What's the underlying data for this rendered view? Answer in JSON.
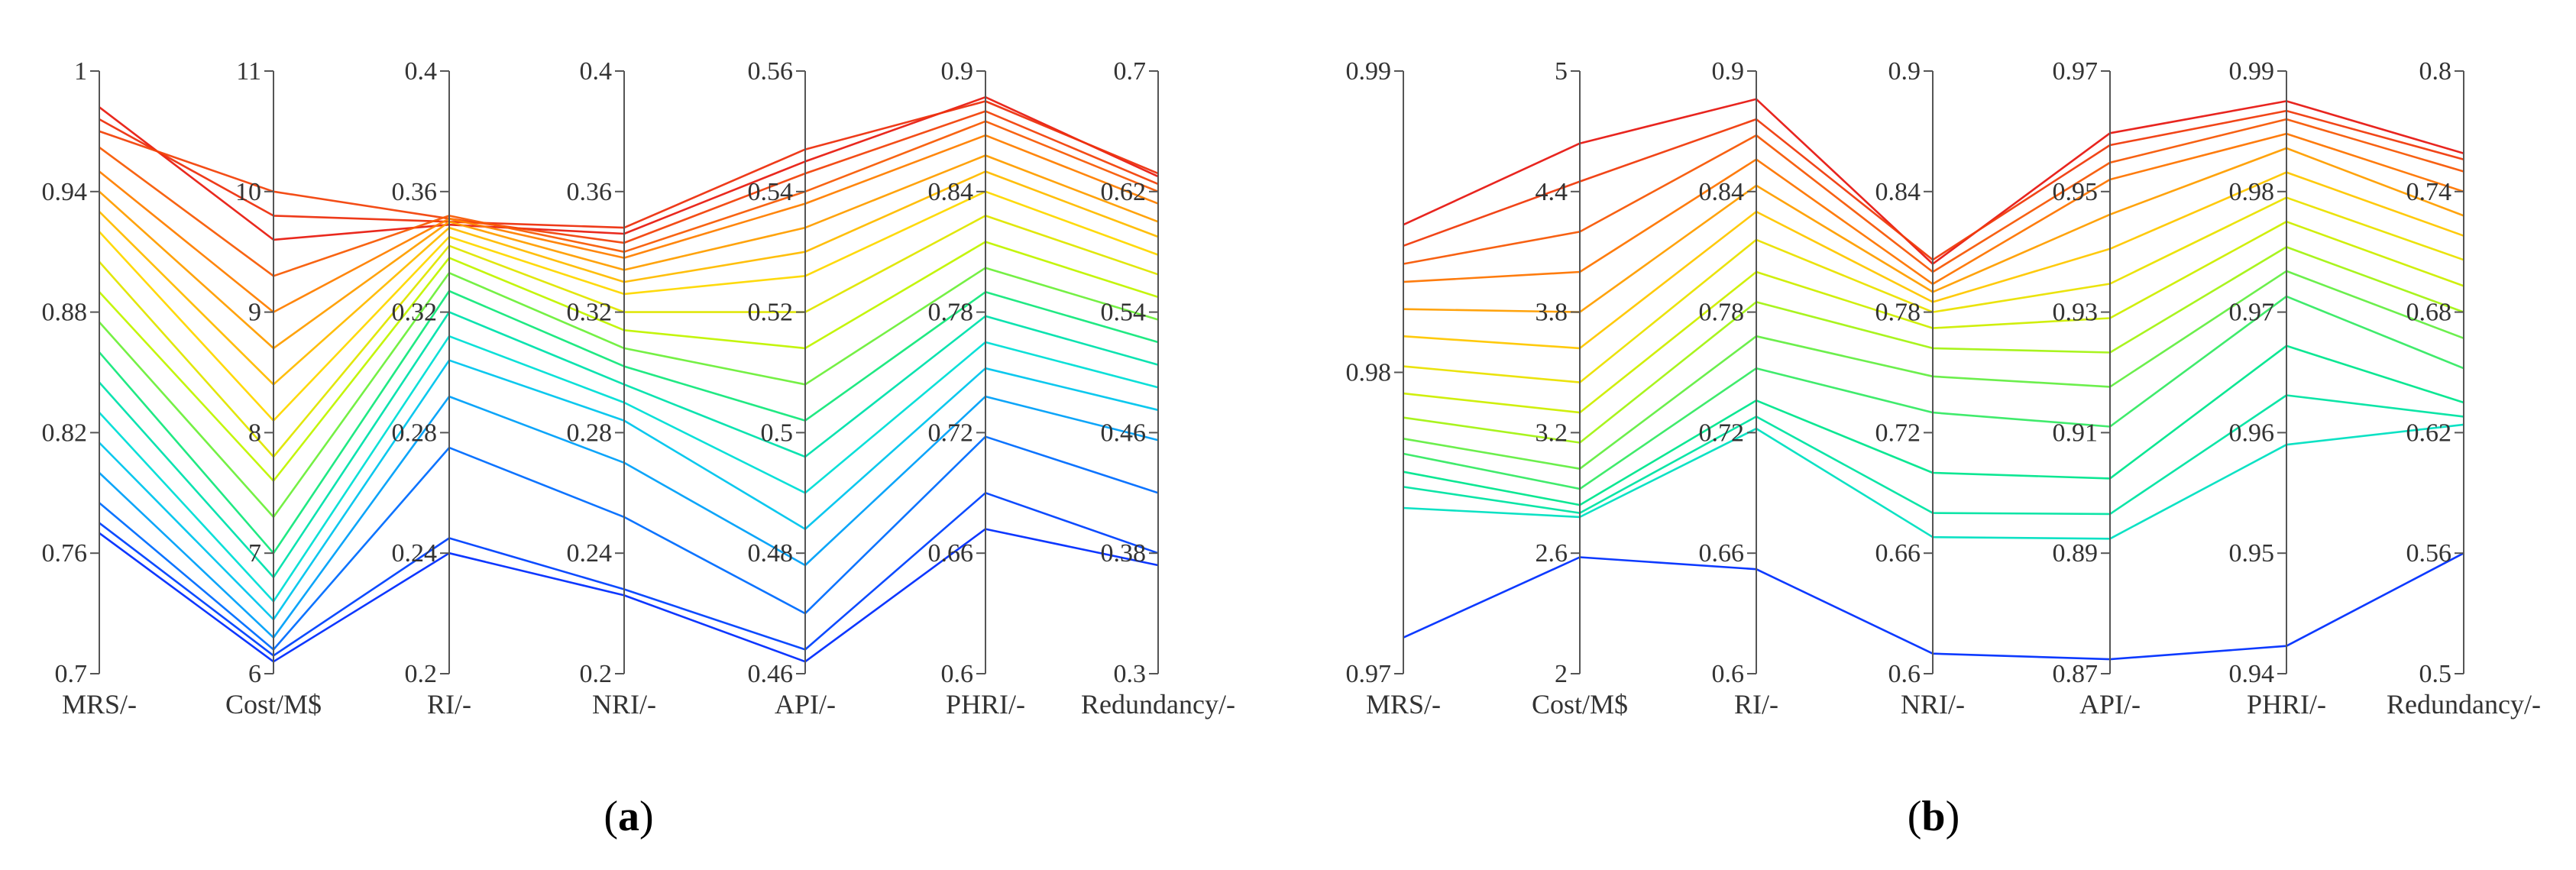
{
  "chart_data": [
    {
      "type": "parallel-coordinates",
      "panel": "(a)",
      "caption_letter": "a",
      "color_scale": "rainbow (blue = low MRS, red = high MRS)",
      "axes": [
        {
          "name": "MRS/-",
          "range": [
            0.7,
            1.0
          ],
          "ticks": [
            "0.7",
            "0.76",
            "0.82",
            "0.88",
            "0.94",
            "1"
          ]
        },
        {
          "name": "Cost/M$",
          "range": [
            6,
            11
          ],
          "ticks": [
            "6",
            "7",
            "8",
            "9",
            "10",
            "11"
          ]
        },
        {
          "name": "RI/-",
          "range": [
            0.2,
            0.4
          ],
          "ticks": [
            "0.2",
            "0.24",
            "0.28",
            "0.32",
            "0.36",
            "0.4"
          ]
        },
        {
          "name": "NRI/-",
          "range": [
            0.2,
            0.4
          ],
          "ticks": [
            "0.2",
            "0.24",
            "0.28",
            "0.32",
            "0.36",
            "0.4"
          ]
        },
        {
          "name": "API/-",
          "range": [
            0.46,
            0.56
          ],
          "ticks": [
            "0.46",
            "0.48",
            "0.5",
            "0.52",
            "0.54",
            "0.56"
          ]
        },
        {
          "name": "PHRI/-",
          "range": [
            0.6,
            0.9
          ],
          "ticks": [
            "0.6",
            "0.66",
            "0.72",
            "0.78",
            "0.84",
            "0.9"
          ]
        },
        {
          "name": "Redundancy/-",
          "range": [
            0.3,
            0.7
          ],
          "ticks": [
            "0.3",
            "0.38",
            "0.46",
            "0.54",
            "0.62",
            "0.7"
          ]
        }
      ],
      "series": [
        {
          "values": [
            0.982,
            9.6,
            0.349,
            0.346,
            0.545,
            0.887,
            0.63
          ]
        },
        {
          "values": [
            0.976,
            9.8,
            0.35,
            0.348,
            0.547,
            0.885,
            0.632
          ]
        },
        {
          "values": [
            0.97,
            10.0,
            0.351,
            0.343,
            0.543,
            0.88,
            0.625
          ]
        },
        {
          "values": [
            0.962,
            9.3,
            0.352,
            0.34,
            0.54,
            0.875,
            0.62
          ]
        },
        {
          "values": [
            0.95,
            9.0,
            0.351,
            0.338,
            0.538,
            0.868,
            0.612
          ]
        },
        {
          "values": [
            0.94,
            8.7,
            0.35,
            0.334,
            0.534,
            0.858,
            0.6
          ]
        },
        {
          "values": [
            0.93,
            8.4,
            0.348,
            0.33,
            0.53,
            0.85,
            0.59
          ]
        },
        {
          "values": [
            0.92,
            8.1,
            0.345,
            0.326,
            0.526,
            0.84,
            0.578
          ]
        },
        {
          "values": [
            0.905,
            7.8,
            0.342,
            0.32,
            0.52,
            0.828,
            0.565
          ]
        },
        {
          "values": [
            0.89,
            7.6,
            0.338,
            0.314,
            0.514,
            0.815,
            0.55
          ]
        },
        {
          "values": [
            0.875,
            7.3,
            0.333,
            0.308,
            0.508,
            0.802,
            0.535
          ]
        },
        {
          "values": [
            0.86,
            7.0,
            0.327,
            0.302,
            0.502,
            0.79,
            0.52
          ]
        },
        {
          "values": [
            0.845,
            6.8,
            0.32,
            0.296,
            0.496,
            0.778,
            0.505
          ]
        },
        {
          "values": [
            0.83,
            6.6,
            0.312,
            0.29,
            0.49,
            0.765,
            0.49
          ]
        },
        {
          "values": [
            0.815,
            6.45,
            0.304,
            0.284,
            0.484,
            0.752,
            0.475
          ]
        },
        {
          "values": [
            0.8,
            6.3,
            0.292,
            0.27,
            0.478,
            0.738,
            0.455
          ]
        },
        {
          "values": [
            0.785,
            6.2,
            0.275,
            0.252,
            0.47,
            0.718,
            0.42
          ]
        },
        {
          "values": [
            0.775,
            6.15,
            0.245,
            0.228,
            0.464,
            0.69,
            0.38
          ]
        },
        {
          "values": [
            0.77,
            6.1,
            0.24,
            0.226,
            0.462,
            0.672,
            0.372
          ]
        }
      ]
    },
    {
      "type": "parallel-coordinates",
      "panel": "(b)",
      "caption_letter": "b",
      "color_scale": "rainbow (blue = low MRS, red = high MRS)",
      "axes": [
        {
          "name": "MRS/-",
          "range": [
            0.97,
            0.99
          ],
          "ticks": [
            "0.97",
            "0.98",
            "0.99"
          ]
        },
        {
          "name": "Cost/M$",
          "range": [
            2,
            5
          ],
          "ticks": [
            "2",
            "2.6",
            "3.2",
            "3.8",
            "4.4",
            "5"
          ]
        },
        {
          "name": "RI/-",
          "range": [
            0.6,
            0.9
          ],
          "ticks": [
            "0.6",
            "0.66",
            "0.72",
            "0.78",
            "0.84",
            "0.9"
          ]
        },
        {
          "name": "NRI/-",
          "range": [
            0.6,
            0.9
          ],
          "ticks": [
            "0.6",
            "0.66",
            "0.72",
            "0.78",
            "0.84",
            "0.9"
          ]
        },
        {
          "name": "API/-",
          "range": [
            0.87,
            0.97
          ],
          "ticks": [
            "0.87",
            "0.89",
            "0.91",
            "0.93",
            "0.95",
            "0.97"
          ]
        },
        {
          "name": "PHRI/-",
          "range": [
            0.94,
            0.99
          ],
          "ticks": [
            "0.94",
            "0.95",
            "0.96",
            "0.97",
            "0.98",
            "0.99"
          ]
        },
        {
          "name": "Redundancy/-",
          "range": [
            0.5,
            0.8
          ],
          "ticks": [
            "0.5",
            "0.56",
            "0.62",
            "0.68",
            "0.74",
            "0.8"
          ]
        }
      ],
      "series": [
        {
          "values": [
            0.9849,
            4.64,
            0.886,
            0.804,
            0.9597,
            0.9875,
            0.759
          ]
        },
        {
          "values": [
            0.9842,
            4.45,
            0.876,
            0.806,
            0.9577,
            0.9867,
            0.756
          ]
        },
        {
          "values": [
            0.9836,
            4.2,
            0.868,
            0.8,
            0.9548,
            0.986,
            0.75
          ]
        },
        {
          "values": [
            0.983,
            4.0,
            0.856,
            0.794,
            0.952,
            0.9848,
            0.74
          ]
        },
        {
          "values": [
            0.9821,
            3.8,
            0.843,
            0.79,
            0.9462,
            0.9836,
            0.728
          ]
        },
        {
          "values": [
            0.9812,
            3.62,
            0.83,
            0.785,
            0.9405,
            0.9816,
            0.718
          ]
        },
        {
          "values": [
            0.9802,
            3.45,
            0.816,
            0.78,
            0.9347,
            0.9795,
            0.706
          ]
        },
        {
          "values": [
            0.9793,
            3.3,
            0.8,
            0.772,
            0.929,
            0.9775,
            0.693
          ]
        },
        {
          "values": [
            0.9785,
            3.15,
            0.785,
            0.762,
            0.9233,
            0.9754,
            0.68
          ]
        },
        {
          "values": [
            0.9778,
            3.02,
            0.768,
            0.748,
            0.9176,
            0.9734,
            0.667
          ]
        },
        {
          "values": [
            0.9773,
            2.92,
            0.752,
            0.73,
            0.911,
            0.9713,
            0.652
          ]
        },
        {
          "values": [
            0.9767,
            2.84,
            0.736,
            0.7,
            0.9024,
            0.9672,
            0.635
          ]
        },
        {
          "values": [
            0.9762,
            2.8,
            0.728,
            0.68,
            0.8965,
            0.9631,
            0.628
          ]
        },
        {
          "values": [
            0.9755,
            2.78,
            0.722,
            0.668,
            0.8924,
            0.959,
            0.624
          ]
        },
        {
          "values": [
            0.9712,
            2.58,
            0.652,
            0.61,
            0.8724,
            0.9423,
            0.56
          ]
        }
      ]
    }
  ],
  "captions": {
    "a_letter": "a",
    "b_letter": "b"
  }
}
